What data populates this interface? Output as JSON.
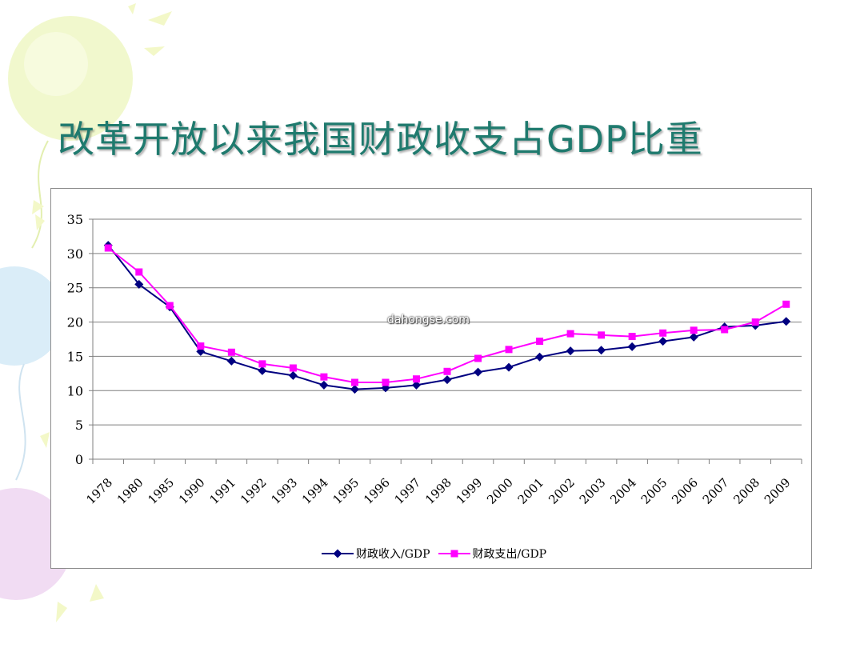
{
  "slide": {
    "title": "改革开放以来我国财政收支占GDP比重",
    "watermark": "dahongse.com"
  },
  "colors": {
    "title": "#1f7a6e",
    "revenue": "#000080",
    "expenditure": "#ff00ff",
    "grid": "#7f7f7f"
  },
  "chart_data": {
    "type": "line",
    "title": "",
    "xlabel": "",
    "ylabel": "",
    "categories": [
      "1978",
      "1980",
      "1985",
      "1990",
      "1991",
      "1992",
      "1993",
      "1994",
      "1995",
      "1996",
      "1997",
      "1998",
      "1999",
      "2000",
      "2001",
      "2002",
      "2003",
      "2004",
      "2005",
      "2006",
      "2007",
      "2008",
      "2009"
    ],
    "ylim": [
      0,
      35
    ],
    "yticks": [
      0,
      5,
      10,
      15,
      20,
      25,
      30,
      35
    ],
    "grid": true,
    "legend": "bottom",
    "series": [
      {
        "name": "财政收入/GDP",
        "marker": "diamond",
        "values": [
          31.2,
          25.5,
          22.2,
          15.7,
          14.3,
          12.9,
          12.2,
          10.8,
          10.2,
          10.4,
          10.8,
          11.6,
          12.7,
          13.4,
          14.9,
          15.8,
          15.9,
          16.4,
          17.2,
          17.8,
          19.3,
          19.5,
          20.1
        ]
      },
      {
        "name": "财政支出/GDP",
        "marker": "square",
        "values": [
          30.8,
          27.3,
          22.4,
          16.5,
          15.6,
          13.9,
          13.3,
          12.0,
          11.2,
          11.2,
          11.7,
          12.8,
          14.7,
          16.0,
          17.2,
          18.3,
          18.1,
          17.9,
          18.4,
          18.8,
          18.9,
          20.0,
          22.6
        ]
      }
    ]
  }
}
